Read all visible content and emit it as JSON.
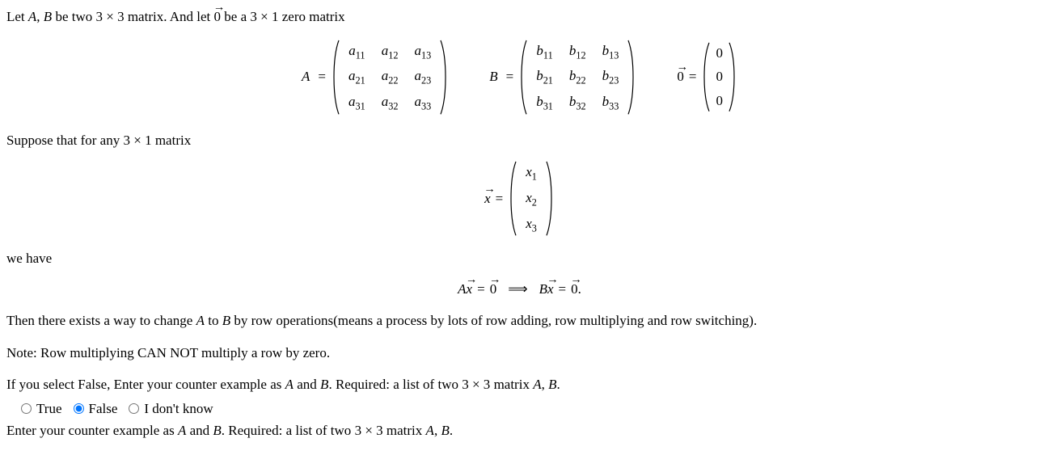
{
  "intro1_pre": "Let ",
  "intro1_mid1": " be two ",
  "intro1_dim1": "3 × 3",
  "intro1_mid2": " matrix. And let ",
  "intro1_mid3": " be a ",
  "intro1_dim2": "3 × 1",
  "intro1_end": " zero matrix",
  "letter_A": "A",
  "letter_B": "B",
  "letter_comma": ", ",
  "zero_vec": "0",
  "equals": "=",
  "matrixA": {
    "rows": [
      [
        "a",
        "11",
        "a",
        "12",
        "a",
        "13"
      ],
      [
        "a",
        "21",
        "a",
        "22",
        "a",
        "23"
      ],
      [
        "a",
        "31",
        "a",
        "32",
        "a",
        "33"
      ]
    ]
  },
  "matrixB": {
    "rows": [
      [
        "b",
        "11",
        "b",
        "12",
        "b",
        "13"
      ],
      [
        "b",
        "21",
        "b",
        "22",
        "b",
        "23"
      ],
      [
        "b",
        "31",
        "b",
        "32",
        "b",
        "33"
      ]
    ]
  },
  "zero_col": [
    "0",
    "0",
    "0"
  ],
  "intro2_pre": "Suppose that for any ",
  "intro2_dim": "3 × 1",
  "intro2_end": " matrix",
  "x_letter": "x",
  "x_rows": [
    "x",
    "1",
    "x",
    "2",
    "x",
    "3"
  ],
  "we_have": "we have",
  "implies": "⟹",
  "period": ".",
  "then_text_pre": "Then there exists a way to change ",
  "then_text_mid": " to ",
  "then_text_end": " by row operations(means a process by lots of row adding, row multiplying and row switching).",
  "note_text": "Note: Row multiplying CAN NOT multiply a row by zero.",
  "if_false_pre": "If you select False, Enter your counter example as ",
  "if_false_mid": " and ",
  "if_false_req": ". Required: a list of two ",
  "if_false_dim": "3 × 3",
  "if_false_end": " matrix ",
  "opt_true": "True",
  "opt_false": "False",
  "opt_idk": "I don't know",
  "enter_pre": "Enter your counter example as ",
  "enter_mid": " and ",
  "enter_req": ". Required: a list of two ",
  "enter_dim": "3 × 3",
  "enter_end": " matrix ",
  "paren_stroke": "#000000",
  "paren_stroke_width": 1.2
}
